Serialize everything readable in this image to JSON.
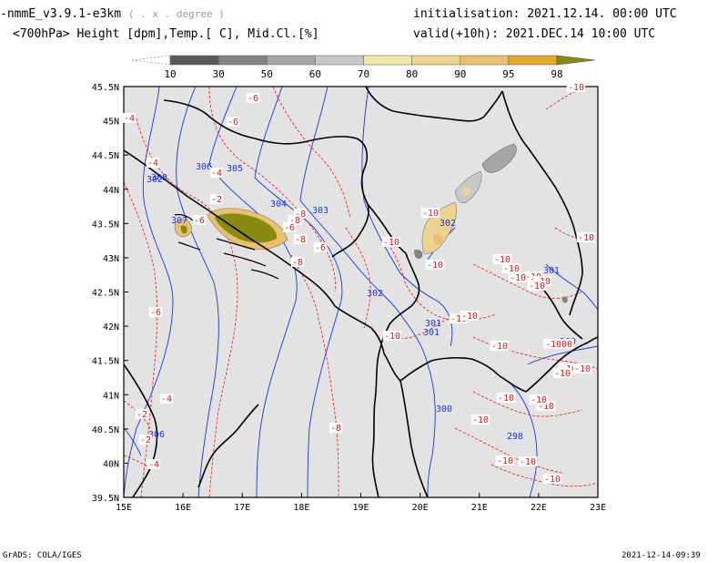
{
  "header": {
    "model": "-nmmE_v3.9.1-e3km",
    "projection_note": "( . x . degree )",
    "params": "<700hPa> Height [dpm],Temp.[ C], Mid.Cl.[%]",
    "init_label": "initialisation:",
    "init_value": "2021.12.14.  00:00 UTC",
    "valid_label": "valid(+10h):",
    "valid_value": "2021.DEC.14  10:00 UTC"
  },
  "colorbar": {
    "labels": [
      "10",
      "30",
      "50",
      "60",
      "70",
      "80",
      "90",
      "95",
      "98"
    ],
    "colors": [
      "#5a5a5a",
      "#828282",
      "#a6a6a6",
      "#c8c8c8",
      "#f0eaaa",
      "#ecd490",
      "#e8c070",
      "#e4aa30",
      "#8a8a10"
    ]
  },
  "map": {
    "lon_labels": [
      "15E",
      "16E",
      "17E",
      "18E",
      "19E",
      "20E",
      "21E",
      "22E",
      "23E"
    ],
    "lat_labels": [
      "45.5N",
      "45N",
      "44.5N",
      "44N",
      "43.5N",
      "43N",
      "42.5N",
      "42N",
      "41.5N",
      "41N",
      "40.5N",
      "40N",
      "39.5N"
    ],
    "height_labels": [
      "306",
      "305",
      "308",
      "304",
      "303",
      "307",
      "302",
      "302",
      "301",
      "301",
      "301",
      "300",
      "306",
      "298",
      "300",
      "302"
    ],
    "temp_labels": [
      "-6",
      "-4",
      "-6",
      "-4",
      "-4",
      "-2",
      "-6",
      "-8",
      "-8",
      "-6",
      "-8",
      "-8",
      "-6",
      "-10",
      "-10",
      "-10",
      "-10",
      "-10",
      "-10",
      "-10",
      "-10",
      "-10",
      "-10",
      "-10",
      "-10",
      "-10",
      "-10",
      "-10",
      "-10",
      "-10",
      "-10",
      "-10",
      "-10",
      "-10",
      "-2",
      "-4",
      "-4",
      "-2",
      "-8",
      "-6",
      "-10",
      "-10",
      "-10",
      "-10",
      "-10",
      "-1000"
    ],
    "colors": {
      "background": "#e3e3e3",
      "height_contour": "#1c35d8",
      "temp_contour": "#e01818",
      "border": "#000000"
    }
  },
  "footer": {
    "left": "GrADS: COLA/IGES",
    "right": "2021-12-14-09:39"
  }
}
